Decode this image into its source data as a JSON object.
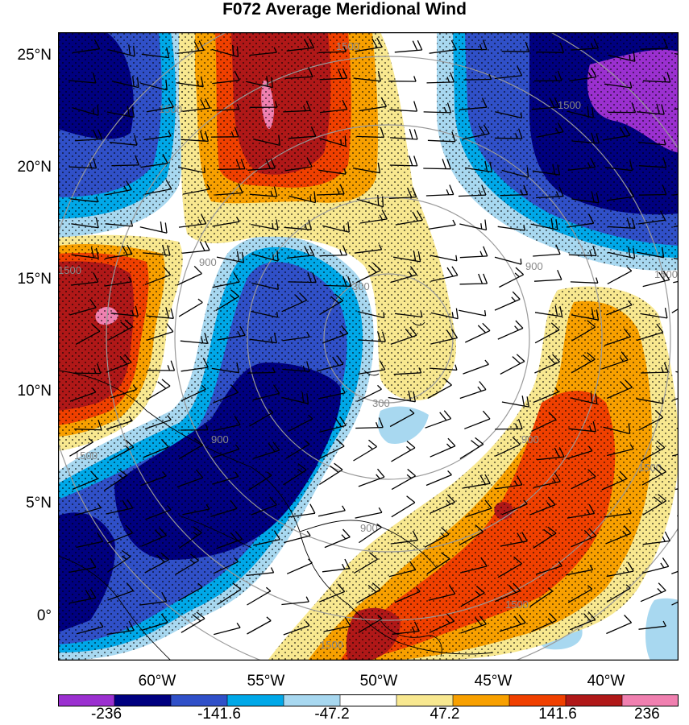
{
  "title": "F072 Average Meridional Wind",
  "lat_labels": [
    "25°N",
    "20°N",
    "15°N",
    "10°N",
    "5°N",
    "0°"
  ],
  "lon_labels": [
    "60°W",
    "55°W",
    "50°W",
    "45°W",
    "40°W"
  ],
  "contour_labels": [
    "300",
    "900",
    "1500"
  ],
  "colorbar": {
    "labels": [
      "-236",
      "-141.6",
      "-47.2",
      "47.2",
      "141.6",
      "236"
    ],
    "colors": [
      "#9b30d0",
      "#000080",
      "#3050c8",
      "#00a8e8",
      "#a8d8f0",
      "#ffffff",
      "#f8e890",
      "#f8a000",
      "#f04000",
      "#b01818",
      "#f080b0"
    ]
  },
  "colors": {
    "map_frame": "#000000",
    "range_rings": "#999999",
    "barbs": "#000000"
  }
}
